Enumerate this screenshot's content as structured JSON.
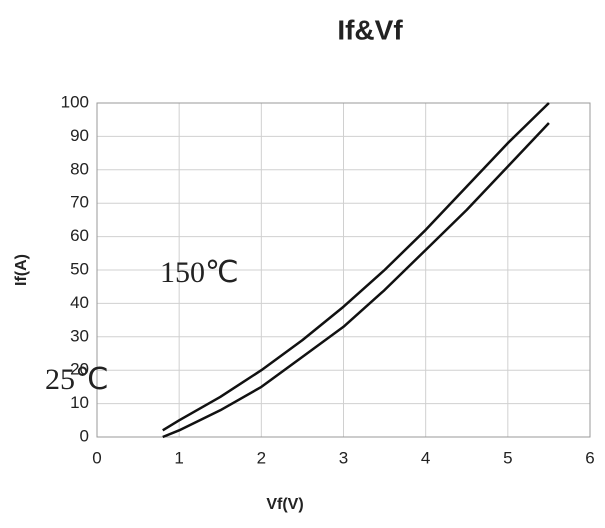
{
  "chart_data": {
    "type": "line",
    "title": "If&Vf",
    "x_label": "Vf(V)",
    "y_label": "If(A)",
    "x": [
      0.8,
      1,
      1.5,
      2,
      2.5,
      3,
      3.5,
      4,
      4.5,
      5,
      5.5
    ],
    "series": [
      {
        "name": "150℃",
        "color": "#111111",
        "values": [
          2,
          5,
          12,
          20,
          29,
          39,
          50,
          62,
          75,
          88,
          100
        ]
      },
      {
        "name": "25℃",
        "color": "#111111",
        "values": [
          0,
          2,
          8,
          15,
          24,
          33,
          44,
          56,
          68,
          81,
          94
        ]
      }
    ],
    "xlim": [
      0,
      6
    ],
    "xticks": [
      0,
      1,
      2,
      3,
      4,
      5,
      6
    ],
    "ylim": [
      0,
      100
    ],
    "yticks": [
      0,
      10,
      20,
      30,
      40,
      50,
      60,
      70,
      80,
      90,
      100
    ],
    "grid": true
  }
}
